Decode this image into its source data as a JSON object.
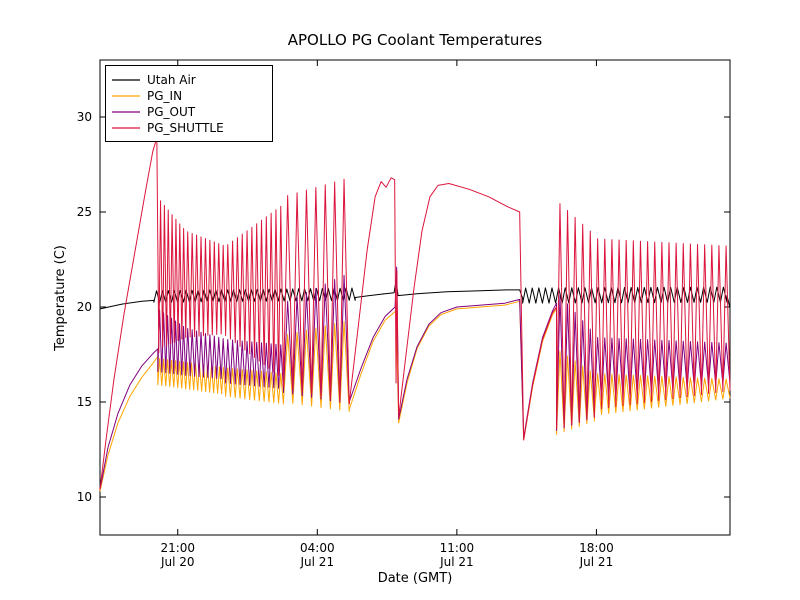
{
  "chart_data": {
    "type": "line",
    "title": "APOLLO PG Coolant Temperatures",
    "xlabel": "Date (GMT)",
    "ylabel": "Temperature (C)",
    "x_unit": "hours since Jul 20 00:00 GMT",
    "xlim": [
      17.1,
      48.7
    ],
    "ylim": [
      8,
      33
    ],
    "yticks": [
      10,
      15,
      20,
      25,
      30
    ],
    "xticks": [
      {
        "t": 21,
        "line1": "21:00",
        "line2": "Jul 20"
      },
      {
        "t": 28,
        "line1": "04:00",
        "line2": "Jul 21"
      },
      {
        "t": 35,
        "line1": "11:00",
        "line2": "Jul 21"
      },
      {
        "t": 42,
        "line1": "18:00",
        "line2": "Jul 21"
      }
    ],
    "grid": false,
    "legend_position": "upper left",
    "series": [
      {
        "name": "Utah Air",
        "color": "#000000",
        "segments": [
          {
            "type": "line",
            "pts": [
              [
                17.1,
                19.9
              ],
              [
                18.2,
                20.15
              ],
              [
                19.2,
                20.3
              ],
              [
                19.8,
                20.35
              ]
            ]
          },
          {
            "type": "saw",
            "t0": 19.8,
            "t1": 29.9,
            "period": 0.3,
            "low0": 20.25,
            "low1": 20.35,
            "high0": 20.85,
            "high1": 21.0
          },
          {
            "type": "line",
            "pts": [
              [
                29.9,
                20.5
              ],
              [
                30.6,
                20.6
              ],
              [
                31.4,
                20.7
              ],
              [
                31.85,
                20.75
              ],
              [
                31.95,
                21.4
              ],
              [
                32.05,
                20.6
              ],
              [
                33.0,
                20.7
              ],
              [
                34.5,
                20.8
              ],
              [
                36.0,
                20.85
              ],
              [
                37.5,
                20.9
              ],
              [
                38.15,
                20.9
              ],
              [
                38.3,
                20.45
              ]
            ]
          },
          {
            "type": "saw",
            "t0": 38.3,
            "t1": 48.55,
            "period": 0.33,
            "low0": 20.2,
            "low1": 20.25,
            "high0": 21.0,
            "high1": 21.05
          },
          {
            "type": "line",
            "pts": [
              [
                48.55,
                20.6
              ],
              [
                48.7,
                19.95
              ]
            ]
          }
        ]
      },
      {
        "name": "PG_IN",
        "color": "#ffa500",
        "segments": [
          {
            "type": "line",
            "pts": [
              [
                17.1,
                10.3
              ],
              [
                17.5,
                12.2
              ],
              [
                18.0,
                13.9
              ],
              [
                18.6,
                15.3
              ],
              [
                19.2,
                16.3
              ],
              [
                19.8,
                17.1
              ],
              [
                20.0,
                17.4
              ]
            ]
          },
          {
            "type": "saw",
            "t0": 20.0,
            "t1": 23.4,
            "period": 0.2,
            "low0": 15.9,
            "low1": 15.4,
            "high0": 17.3,
            "high1": 16.8
          },
          {
            "type": "saw",
            "t0": 23.4,
            "t1": 26.3,
            "period": 0.25,
            "low0": 15.3,
            "low1": 14.9,
            "high0": 16.8,
            "high1": 16.5
          },
          {
            "type": "saw",
            "t0": 26.3,
            "t1": 29.6,
            "period": 0.45,
            "low0": 15.0,
            "low1": 14.5,
            "high0": 18.5,
            "high1": 19.3
          },
          {
            "type": "line",
            "pts": [
              [
                29.6,
                14.6
              ],
              [
                30.2,
                16.5
              ],
              [
                30.8,
                18.2
              ],
              [
                31.4,
                19.3
              ],
              [
                31.95,
                19.8
              ],
              [
                32.08,
                13.9
              ]
            ]
          },
          {
            "type": "line",
            "pts": [
              [
                32.08,
                13.9
              ],
              [
                32.5,
                16.0
              ],
              [
                33.0,
                17.8
              ],
              [
                33.6,
                19.0
              ],
              [
                34.2,
                19.6
              ],
              [
                35.0,
                19.9
              ],
              [
                36.2,
                20.0
              ],
              [
                37.4,
                20.1
              ],
              [
                38.15,
                20.3
              ],
              [
                38.35,
                13.0
              ]
            ]
          },
          {
            "type": "line",
            "pts": [
              [
                38.35,
                13.0
              ],
              [
                38.8,
                15.8
              ],
              [
                39.3,
                18.2
              ],
              [
                39.8,
                19.6
              ],
              [
                40.0,
                19.9
              ]
            ]
          },
          {
            "type": "saw",
            "t0": 40.0,
            "t1": 41.9,
            "period": 0.38,
            "low0": 13.3,
            "low1": 14.0,
            "high0": 17.8,
            "high1": 16.5
          },
          {
            "type": "saw",
            "t0": 41.9,
            "t1": 48.7,
            "period": 0.36,
            "low0": 14.3,
            "low1": 15.2,
            "high0": 16.5,
            "high1": 16.2
          }
        ]
      },
      {
        "name": "PG_OUT",
        "color": "#800080",
        "segments": [
          {
            "type": "line",
            "pts": [
              [
                17.1,
                10.4
              ],
              [
                17.5,
                12.6
              ],
              [
                18.0,
                14.4
              ],
              [
                18.6,
                15.9
              ],
              [
                19.2,
                16.9
              ],
              [
                19.8,
                17.6
              ],
              [
                20.0,
                17.8
              ]
            ]
          },
          {
            "type": "saw",
            "t0": 20.0,
            "t1": 21.4,
            "period": 0.2,
            "low0": 16.6,
            "low1": 16.4,
            "high0": 19.9,
            "high1": 18.9
          },
          {
            "type": "saw",
            "t0": 21.4,
            "t1": 23.4,
            "period": 0.22,
            "low0": 16.4,
            "low1": 16.2,
            "high0": 18.9,
            "high1": 18.3
          },
          {
            "type": "saw",
            "t0": 23.4,
            "t1": 26.3,
            "period": 0.25,
            "low0": 16.0,
            "low1": 15.7,
            "high0": 18.3,
            "high1": 18.0
          },
          {
            "type": "saw",
            "t0": 26.3,
            "t1": 29.6,
            "period": 0.45,
            "low0": 15.5,
            "low1": 14.9,
            "high0": 20.2,
            "high1": 21.8
          },
          {
            "type": "line",
            "pts": [
              [
                29.6,
                15.0
              ],
              [
                30.2,
                16.8
              ],
              [
                30.8,
                18.4
              ],
              [
                31.4,
                19.5
              ],
              [
                31.9,
                20.0
              ],
              [
                31.98,
                22.1
              ],
              [
                32.08,
                14.1
              ]
            ]
          },
          {
            "type": "line",
            "pts": [
              [
                32.08,
                14.1
              ],
              [
                32.5,
                16.2
              ],
              [
                33.0,
                17.9
              ],
              [
                33.6,
                19.1
              ],
              [
                34.2,
                19.7
              ],
              [
                35.0,
                20.0
              ],
              [
                36.2,
                20.1
              ],
              [
                37.4,
                20.2
              ],
              [
                38.15,
                20.4
              ],
              [
                38.35,
                13.1
              ]
            ]
          },
          {
            "type": "line",
            "pts": [
              [
                38.35,
                13.1
              ],
              [
                38.8,
                16.0
              ],
              [
                39.3,
                18.4
              ],
              [
                39.8,
                19.8
              ],
              [
                40.0,
                20.2
              ]
            ]
          },
          {
            "type": "saw",
            "t0": 40.0,
            "t1": 41.9,
            "period": 0.38,
            "low0": 13.5,
            "low1": 14.2,
            "high0": 20.8,
            "high1": 18.6
          },
          {
            "type": "saw",
            "t0": 41.9,
            "t1": 48.7,
            "period": 0.36,
            "low0": 15.0,
            "low1": 16.0,
            "high0": 18.4,
            "high1": 18.1
          }
        ]
      },
      {
        "name": "PG_SHUTTLE",
        "color": "#dc143c",
        "segments": [
          {
            "type": "line",
            "pts": [
              [
                17.1,
                10.4
              ],
              [
                17.4,
                13.0
              ],
              [
                17.8,
                16.2
              ],
              [
                18.3,
                19.6
              ],
              [
                18.9,
                23.2
              ],
              [
                19.4,
                26.2
              ],
              [
                19.75,
                28.2
              ],
              [
                19.95,
                28.9
              ],
              [
                20.05,
                17.6
              ]
            ]
          },
          {
            "type": "saw",
            "t0": 20.05,
            "t1": 21.4,
            "period": 0.18,
            "low0": 17.8,
            "low1": 18.4,
            "high0": 25.7,
            "high1": 24.0
          },
          {
            "type": "saw",
            "t0": 21.4,
            "t1": 23.4,
            "period": 0.22,
            "low0": 18.4,
            "low1": 18.6,
            "high0": 24.0,
            "high1": 23.2
          },
          {
            "type": "saw",
            "t0": 23.4,
            "t1": 26.3,
            "period": 0.25,
            "low0": 18.5,
            "low1": 16.2,
            "high0": 23.2,
            "high1": 25.4
          },
          {
            "type": "saw",
            "t0": 26.3,
            "t1": 29.6,
            "period": 0.45,
            "low0": 15.8,
            "low1": 14.9,
            "high0": 25.8,
            "high1": 26.8
          },
          {
            "type": "line",
            "pts": [
              [
                29.6,
                14.9
              ],
              [
                30.0,
                18.5
              ],
              [
                30.5,
                23.0
              ],
              [
                30.9,
                25.8
              ],
              [
                31.2,
                26.6
              ],
              [
                31.45,
                26.3
              ],
              [
                31.7,
                26.8
              ],
              [
                31.88,
                26.7
              ],
              [
                31.95,
                16.0
              ],
              [
                31.99,
                21.9
              ],
              [
                32.08,
                14.2
              ]
            ]
          },
          {
            "type": "line",
            "pts": [
              [
                32.08,
                14.2
              ],
              [
                32.45,
                17.5
              ],
              [
                32.85,
                21.0
              ],
              [
                33.25,
                24.0
              ],
              [
                33.65,
                25.8
              ],
              [
                34.05,
                26.4
              ],
              [
                34.6,
                26.5
              ],
              [
                35.6,
                26.2
              ],
              [
                36.6,
                25.8
              ],
              [
                37.5,
                25.3
              ],
              [
                38.15,
                25.0
              ],
              [
                38.35,
                13.0
              ]
            ]
          },
          {
            "type": "line",
            "pts": [
              [
                38.35,
                13.0
              ],
              [
                38.8,
                15.9
              ],
              [
                39.3,
                18.3
              ],
              [
                39.8,
                19.7
              ],
              [
                40.0,
                20.0
              ]
            ]
          },
          {
            "type": "saw",
            "t0": 40.0,
            "t1": 41.9,
            "period": 0.38,
            "low0": 13.6,
            "low1": 14.2,
            "high0": 25.6,
            "high1": 23.8
          },
          {
            "type": "saw",
            "t0": 41.9,
            "t1": 48.7,
            "period": 0.36,
            "low0": 14.6,
            "low1": 15.6,
            "high0": 23.6,
            "high1": 23.2
          }
        ]
      }
    ]
  }
}
